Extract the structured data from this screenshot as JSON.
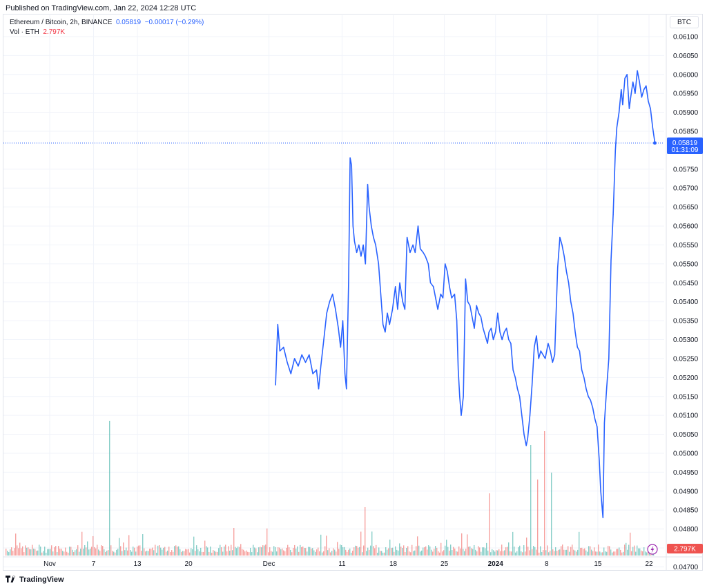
{
  "published": "Published on TradingView.com, Jan 22, 2024 12:28 UTC",
  "legend": {
    "symbol": "Ethereum / Bitcoin, 2h, BINANCE",
    "last": "0.05819",
    "change": "−0.00017 (−0.29%)",
    "vol_label": "Vol · ETH",
    "vol_value": "2.797K"
  },
  "currency_button": "BTC",
  "footer_brand": "TradingView",
  "icons": {
    "logo": "tradingview-logo-icon",
    "lightning": "lightning-icon"
  },
  "colors": {
    "line": "#2962ff",
    "vol_up": "#26a69a",
    "vol_down": "#ef5350",
    "grid": "#f0f3fa"
  },
  "chart_data": {
    "type": "line",
    "title": "Ethereum / Bitcoin, 2h, BINANCE",
    "ylim": [
      0.0473,
      0.0612
    ],
    "y_ticks": [
      "0.06100",
      "0.06050",
      "0.06000",
      "0.05950",
      "0.05900",
      "0.05850",
      "0.05750",
      "0.05700",
      "0.05650",
      "0.05600",
      "0.05550",
      "0.05500",
      "0.05450",
      "0.05400",
      "0.05350",
      "0.05300",
      "0.05250",
      "0.05200",
      "0.05150",
      "0.05100",
      "0.05050",
      "0.05000",
      "0.04950",
      "0.04900",
      "0.04850",
      "0.04800",
      "0.04750",
      "0.04700"
    ],
    "x_ticks": [
      {
        "label": "Nov",
        "day": 0,
        "bold": false
      },
      {
        "label": "7",
        "day": 6,
        "bold": false
      },
      {
        "label": "13",
        "day": 12,
        "bold": false
      },
      {
        "label": "20",
        "day": 19,
        "bold": false
      },
      {
        "label": "Dec",
        "day": 30,
        "bold": false
      },
      {
        "label": "11",
        "day": 40,
        "bold": false
      },
      {
        "label": "18",
        "day": 47,
        "bold": false
      },
      {
        "label": "25",
        "day": 54,
        "bold": false
      },
      {
        "label": "2024",
        "day": 61,
        "bold": true
      },
      {
        "label": "8",
        "day": 68,
        "bold": false
      },
      {
        "label": "15",
        "day": 75,
        "bold": false
      },
      {
        "label": "22",
        "day": 82,
        "bold": false
      }
    ],
    "series": [
      {
        "values": [
          [
            -5.6,
            0.0518
          ],
          [
            -5.3,
            0.0534
          ],
          [
            -5.0,
            0.0527
          ],
          [
            -4.5,
            0.0528
          ],
          [
            -4.0,
            0.0524
          ],
          [
            -3.5,
            0.0521
          ],
          [
            -3.0,
            0.0525
          ],
          [
            -2.5,
            0.0523
          ],
          [
            -2.0,
            0.0526
          ],
          [
            -1.5,
            0.0524
          ],
          [
            -1.0,
            0.0526
          ],
          [
            -0.5,
            0.0521
          ],
          [
            0.0,
            0.0522
          ],
          [
            0.3,
            0.0517
          ],
          [
            0.6,
            0.0523
          ],
          [
            1.0,
            0.053
          ],
          [
            1.4,
            0.0537
          ],
          [
            1.8,
            0.054
          ],
          [
            2.2,
            0.0542
          ],
          [
            2.6,
            0.0538
          ],
          [
            3.0,
            0.0533
          ],
          [
            3.3,
            0.0528
          ],
          [
            3.6,
            0.0535
          ],
          [
            3.9,
            0.0521
          ],
          [
            4.1,
            0.0517
          ],
          [
            4.4,
            0.0545
          ],
          [
            4.6,
            0.0578
          ],
          [
            4.8,
            0.0576
          ],
          [
            5.0,
            0.056
          ],
          [
            5.2,
            0.0556
          ],
          [
            5.5,
            0.0553
          ],
          [
            5.8,
            0.0555
          ],
          [
            6.1,
            0.0552
          ],
          [
            6.4,
            0.0555
          ],
          [
            6.7,
            0.055
          ],
          [
            7.0,
            0.0571
          ],
          [
            7.2,
            0.0565
          ],
          [
            7.5,
            0.056
          ],
          [
            7.8,
            0.0557
          ],
          [
            8.1,
            0.0555
          ],
          [
            8.5,
            0.055
          ],
          [
            8.8,
            0.0542
          ],
          [
            9.1,
            0.0534
          ],
          [
            9.4,
            0.0532
          ],
          [
            9.7,
            0.0537
          ],
          [
            10.0,
            0.0534
          ],
          [
            10.4,
            0.0538
          ],
          [
            10.8,
            0.0544
          ],
          [
            11.1,
            0.0538
          ],
          [
            11.4,
            0.0545
          ],
          [
            11.8,
            0.054
          ],
          [
            12.1,
            0.0538
          ],
          [
            12.4,
            0.0557
          ],
          [
            12.8,
            0.0553
          ],
          [
            13.2,
            0.0555
          ],
          [
            13.5,
            0.0553
          ],
          [
            13.9,
            0.056
          ],
          [
            14.2,
            0.0554
          ],
          [
            14.6,
            0.0553
          ],
          [
            14.9,
            0.0552
          ],
          [
            15.3,
            0.055
          ],
          [
            15.6,
            0.0545
          ],
          [
            16.0,
            0.0544
          ],
          [
            16.3,
            0.0541
          ],
          [
            16.6,
            0.0538
          ],
          [
            17.0,
            0.0542
          ],
          [
            17.3,
            0.0541
          ],
          [
            17.6,
            0.055
          ],
          [
            17.9,
            0.0548
          ],
          [
            18.2,
            0.0544
          ],
          [
            18.5,
            0.0541
          ],
          [
            18.9,
            0.0542
          ],
          [
            19.2,
            0.0535
          ],
          [
            19.4,
            0.0522
          ],
          [
            19.6,
            0.0515
          ],
          [
            19.8,
            0.051
          ],
          [
            20.1,
            0.0515
          ],
          [
            20.4,
            0.0546
          ],
          [
            20.7,
            0.054
          ],
          [
            21.0,
            0.0539
          ],
          [
            21.3,
            0.0536
          ],
          [
            21.6,
            0.0533
          ],
          [
            21.9,
            0.0539
          ],
          [
            22.2,
            0.0537
          ],
          [
            22.5,
            0.0536
          ],
          [
            22.8,
            0.0533
          ],
          [
            23.1,
            0.0531
          ],
          [
            23.4,
            0.0529
          ],
          [
            23.6,
            0.0532
          ],
          [
            23.9,
            0.0533
          ],
          [
            24.2,
            0.053
          ],
          [
            24.5,
            0.0532
          ],
          [
            24.8,
            0.0537
          ],
          [
            25.1,
            0.0532
          ],
          [
            25.4,
            0.053
          ],
          [
            25.7,
            0.0532
          ],
          [
            26.0,
            0.0533
          ],
          [
            26.3,
            0.053
          ],
          [
            26.6,
            0.0529
          ],
          [
            26.9,
            0.0522
          ],
          [
            27.2,
            0.052
          ],
          [
            27.5,
            0.0517
          ],
          [
            27.8,
            0.0515
          ],
          [
            28.1,
            0.051
          ],
          [
            28.4,
            0.0505
          ],
          [
            28.7,
            0.0502
          ],
          [
            28.9,
            0.0504
          ],
          [
            29.2,
            0.051
          ],
          [
            29.5,
            0.0518
          ],
          [
            29.8,
            0.0528
          ],
          [
            30.1,
            0.0531
          ],
          [
            30.4,
            0.0525
          ],
          [
            30.7,
            0.0527
          ],
          [
            31.0,
            0.0526
          ],
          [
            31.3,
            0.0525
          ],
          [
            31.7,
            0.0529
          ],
          [
            32.0,
            0.0527
          ],
          [
            32.3,
            0.0524
          ],
          [
            32.6,
            0.0526
          ],
          [
            33.0,
            0.0549
          ],
          [
            33.3,
            0.0557
          ],
          [
            33.6,
            0.0555
          ],
          [
            33.9,
            0.0552
          ],
          [
            34.2,
            0.0548
          ],
          [
            34.5,
            0.0545
          ],
          [
            34.8,
            0.054
          ],
          [
            35.1,
            0.0537
          ],
          [
            35.4,
            0.0532
          ],
          [
            35.7,
            0.0528
          ],
          [
            36.0,
            0.0527
          ],
          [
            36.3,
            0.0522
          ],
          [
            36.6,
            0.052
          ],
          [
            36.9,
            0.0517
          ],
          [
            37.2,
            0.0515
          ],
          [
            37.5,
            0.0514
          ],
          [
            37.8,
            0.0512
          ],
          [
            38.1,
            0.0509
          ],
          [
            38.4,
            0.0507
          ],
          [
            38.7,
            0.0498
          ],
          [
            38.9,
            0.049
          ],
          [
            39.2,
            0.0483
          ],
          [
            39.4,
            0.0508
          ],
          [
            39.7,
            0.0517
          ],
          [
            40.0,
            0.0525
          ],
          [
            40.3,
            0.0551
          ],
          [
            40.6,
            0.0563
          ],
          [
            40.9,
            0.058
          ],
          [
            41.1,
            0.0586
          ],
          [
            41.4,
            0.059
          ],
          [
            41.7,
            0.0596
          ],
          [
            41.9,
            0.0592
          ],
          [
            42.2,
            0.0599
          ],
          [
            42.5,
            0.06
          ],
          [
            42.8,
            0.0591
          ],
          [
            43.0,
            0.0594
          ],
          [
            43.3,
            0.0598
          ],
          [
            43.6,
            0.0595
          ],
          [
            43.9,
            0.0601
          ],
          [
            44.2,
            0.0598
          ],
          [
            44.5,
            0.0594
          ],
          [
            44.8,
            0.0596
          ],
          [
            45.1,
            0.0597
          ],
          [
            45.4,
            0.0593
          ],
          [
            45.7,
            0.0591
          ],
          [
            46.0,
            0.0586
          ],
          [
            46.3,
            0.0582
          ]
        ]
      }
    ],
    "volume_range": [
      0,
      1
    ],
    "last_value": 0.05819,
    "price_label": "0.05819",
    "countdown_label": "01:31:09",
    "volume_label": "2.797K"
  }
}
